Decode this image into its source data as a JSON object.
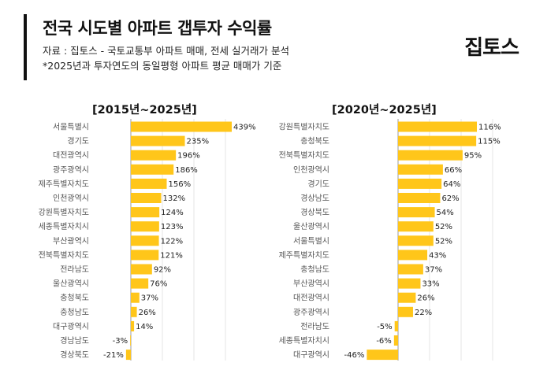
{
  "header": {
    "title": "전국 시도별 아파트 갭투자 수익률",
    "source": "자료 : 집토스 - 국토교통부 아파트 매매, 전세 실거래가 분석",
    "note": "*2025년과 투자연도의 동일평형 아파트 평균 매매가 기준",
    "logo": "집토스"
  },
  "colors": {
    "bar": "#FFC61A"
  },
  "chart_data": [
    {
      "type": "bar",
      "orientation": "horizontal",
      "title": "[2015년~2025년]",
      "categories": [
        "서울특별시",
        "경기도",
        "대전광역시",
        "광주광역시",
        "제주특별자치도",
        "인천광역시",
        "강원특별자치도",
        "세종특별자치시",
        "부산광역시",
        "전북특별자치도",
        "전라남도",
        "울산광역시",
        "충청북도",
        "충청남도",
        "대구광역시",
        "경남남도",
        "경상북도"
      ],
      "values": [
        439,
        235,
        196,
        186,
        156,
        132,
        124,
        123,
        122,
        121,
        92,
        76,
        37,
        26,
        14,
        -3,
        -21
      ],
      "value_labels": [
        "439%",
        "235%",
        "196%",
        "186%",
        "156%",
        "132%",
        "124%",
        "123%",
        "122%",
        "121%",
        "92%",
        "76%",
        "37%",
        "26%",
        "14%",
        "-3%",
        "-21%"
      ],
      "unit": "%"
    },
    {
      "type": "bar",
      "orientation": "horizontal",
      "title": "[2020년~2025년]",
      "categories": [
        "강원특별자치도",
        "충청북도",
        "전북특별자치도",
        "인천광역시",
        "경기도",
        "경상남도",
        "경상북도",
        "울산광역시",
        "서울특별시",
        "제주특별자치도",
        "충청남도",
        "부산광역시",
        "대전광역시",
        "광주광역시",
        "전라남도",
        "세종특별자치시",
        "대구광역시"
      ],
      "values": [
        116,
        115,
        95,
        66,
        64,
        62,
        54,
        52,
        52,
        43,
        37,
        33,
        26,
        22,
        -5,
        -6,
        -46
      ],
      "value_labels": [
        "116%",
        "115%",
        "95%",
        "66%",
        "64%",
        "62%",
        "54%",
        "52%",
        "52%",
        "43%",
        "37%",
        "33%",
        "26%",
        "22%",
        "-5%",
        "-6%",
        "-46%"
      ],
      "unit": "%"
    }
  ]
}
